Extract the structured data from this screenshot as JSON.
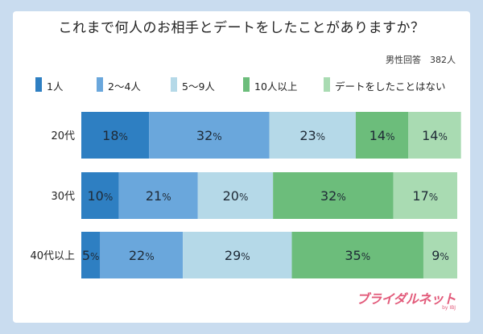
{
  "title": "これまで何人のお相手とデートをしたことがありますか？",
  "note": "男性回答　382人",
  "brand": {
    "logo": "ブライダルネット",
    "sub": "by IBJ"
  },
  "chart_data": {
    "type": "bar",
    "orientation": "horizontal",
    "stacked": true,
    "unit": "%",
    "xlim": [
      0,
      100
    ],
    "grid": false,
    "legend_position": "top",
    "categories": [
      "20代",
      "30代",
      "40代以上"
    ],
    "series": [
      {
        "name": "1人",
        "color": "#2e7fc2",
        "values": [
          18,
          10,
          5
        ]
      },
      {
        "name": "2～4人",
        "color": "#6aa7dc",
        "values": [
          32,
          21,
          22
        ]
      },
      {
        "name": "5～9人",
        "color": "#b5d9e8",
        "values": [
          23,
          20,
          29
        ]
      },
      {
        "name": "10人以上",
        "color": "#6cbd7b",
        "values": [
          14,
          32,
          35
        ]
      },
      {
        "name": "デートをしたことはない",
        "color": "#a9dbb2",
        "values": [
          14,
          17,
          9
        ]
      }
    ]
  },
  "colors": {
    "background": "#c9dcef",
    "card": "#ffffff",
    "brand": "#e25a7a",
    "label_dark": "#1f2a36"
  }
}
